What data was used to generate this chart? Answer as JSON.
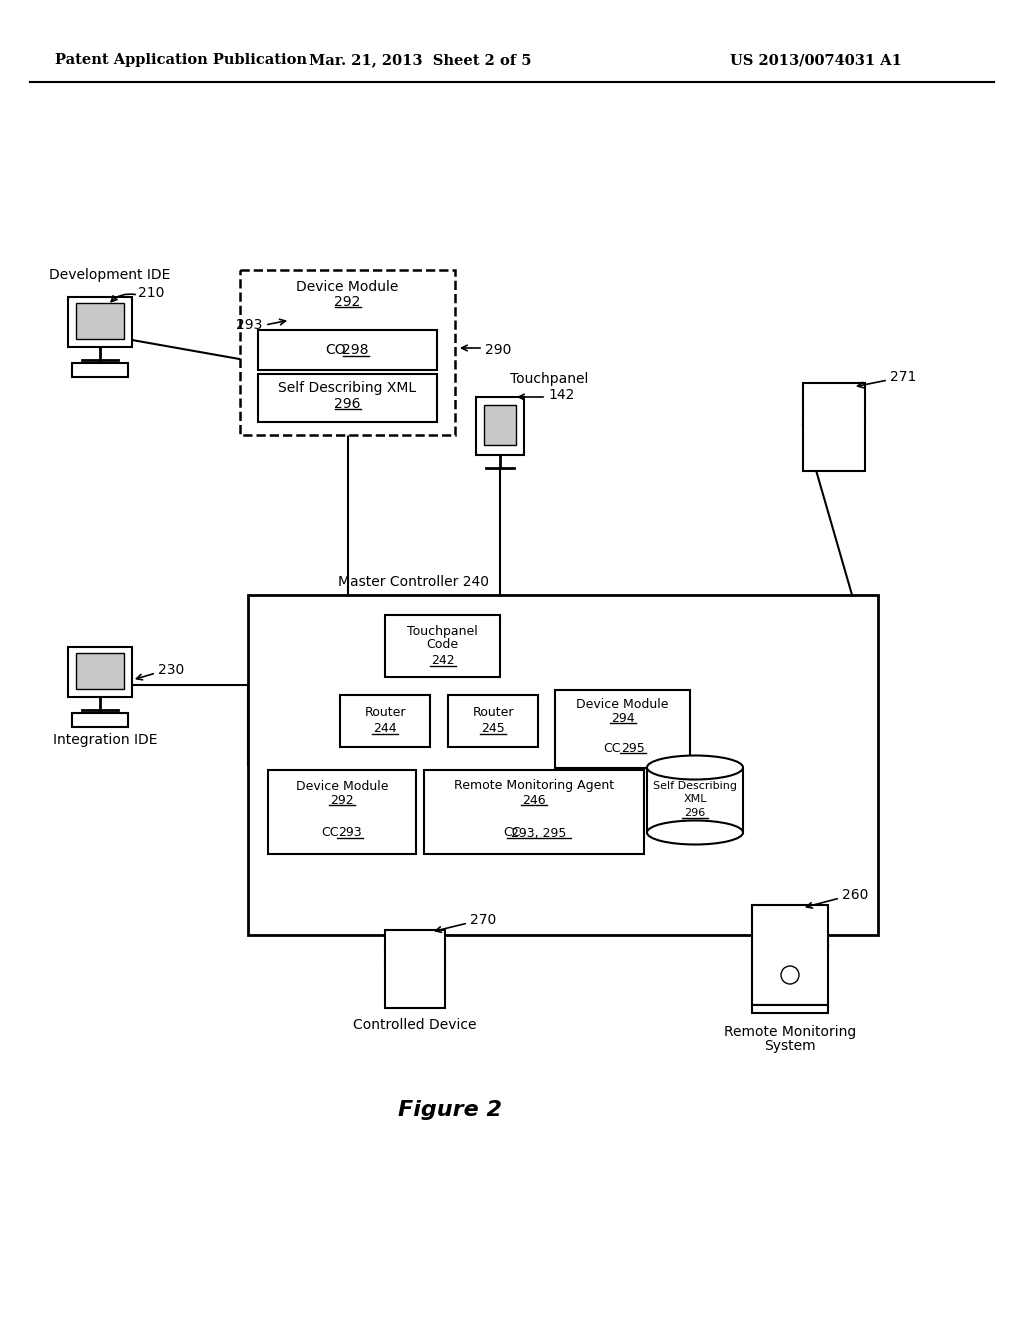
{
  "header_left": "Patent Application Publication",
  "header_mid": "Mar. 21, 2013  Sheet 2 of 5",
  "header_right": "US 2013/0074031 A1",
  "figure_label": "Figure 2",
  "background": "#ffffff"
}
